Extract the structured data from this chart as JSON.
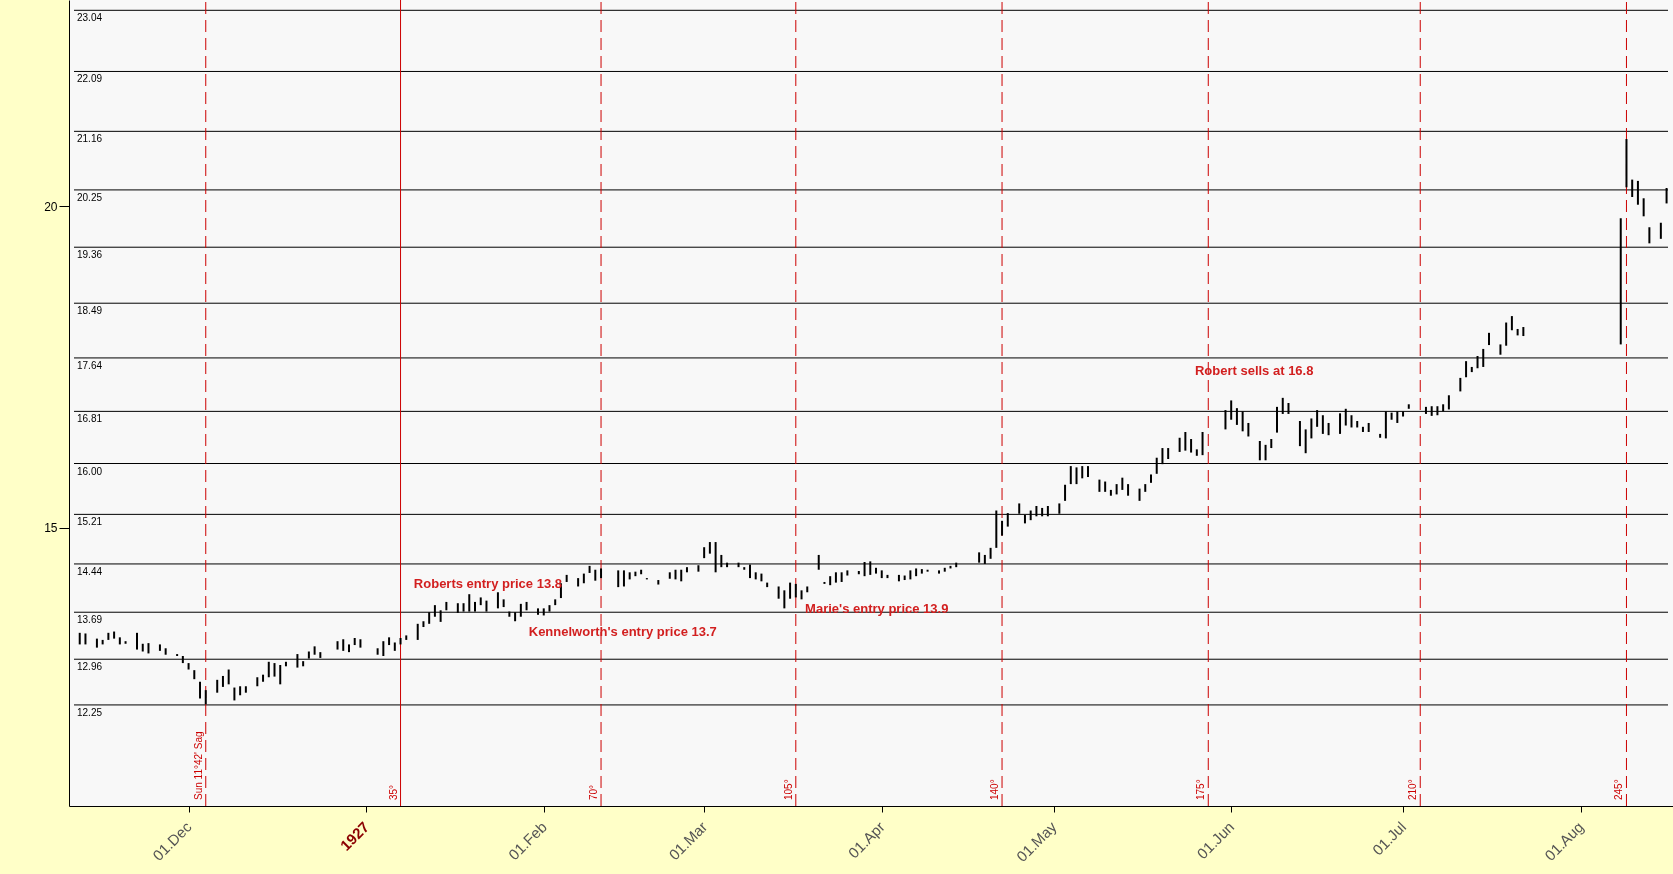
{
  "chart_data": {
    "type": "bar",
    "color": "#000000",
    "x": [
      "1926-11-12",
      "1926-11-13",
      "1926-11-15",
      "1926-11-16",
      "1926-11-17",
      "1926-11-18",
      "1926-11-19",
      "1926-11-20",
      "1926-11-22",
      "1926-11-23",
      "1926-11-24",
      "1926-11-26",
      "1926-11-27",
      "1926-11-29",
      "1926-11-30",
      "1926-12-01",
      "1926-12-02",
      "1926-12-03",
      "1926-12-04",
      "1926-12-06",
      "1926-12-07",
      "1926-12-08",
      "1926-12-09",
      "1926-12-10",
      "1926-12-11",
      "1926-12-13",
      "1926-12-14",
      "1926-12-15",
      "1926-12-16",
      "1926-12-17",
      "1926-12-18",
      "1926-12-20",
      "1926-12-21",
      "1926-12-22",
      "1926-12-23",
      "1926-12-24",
      "1926-12-27",
      "1926-12-28",
      "1926-12-29",
      "1926-12-30",
      "1926-12-31",
      "1927-01-03",
      "1927-01-04",
      "1927-01-05",
      "1927-01-06",
      "1927-01-07",
      "1927-01-08",
      "1927-01-10",
      "1927-01-11",
      "1927-01-12",
      "1927-01-13",
      "1927-01-14",
      "1927-01-15",
      "1927-01-17",
      "1927-01-18",
      "1927-01-19",
      "1927-01-20",
      "1927-01-21",
      "1927-01-22",
      "1927-01-24",
      "1927-01-25",
      "1927-01-26",
      "1927-01-27",
      "1927-01-28",
      "1927-01-29",
      "1927-01-31",
      "1927-02-01",
      "1927-02-02",
      "1927-02-03",
      "1927-02-04",
      "1927-02-05",
      "1927-02-07",
      "1927-02-08",
      "1927-02-09",
      "1927-02-10",
      "1927-02-11",
      "1927-02-14",
      "1927-02-15",
      "1927-02-16",
      "1927-02-17",
      "1927-02-18",
      "1927-02-19",
      "1927-02-21",
      "1927-02-23",
      "1927-02-24",
      "1927-02-25",
      "1927-02-26",
      "1927-02-28",
      "1927-03-01",
      "1927-03-02",
      "1927-03-03",
      "1927-03-04",
      "1927-03-05",
      "1927-03-07",
      "1927-03-08",
      "1927-03-09",
      "1927-03-10",
      "1927-03-11",
      "1927-03-12",
      "1927-03-14",
      "1927-03-15",
      "1927-03-16",
      "1927-03-17",
      "1927-03-18",
      "1927-03-19",
      "1927-03-21",
      "1927-03-22",
      "1927-03-23",
      "1927-03-24",
      "1927-03-25",
      "1927-03-26",
      "1927-03-28",
      "1927-03-29",
      "1927-03-30",
      "1927-03-31",
      "1927-04-01",
      "1927-04-02",
      "1927-04-04",
      "1927-04-05",
      "1927-04-06",
      "1927-04-07",
      "1927-04-08",
      "1927-04-09",
      "1927-04-11",
      "1927-04-12",
      "1927-04-13",
      "1927-04-14",
      "1927-04-18",
      "1927-04-19",
      "1927-04-20",
      "1927-04-21",
      "1927-04-22",
      "1927-04-23",
      "1927-04-25",
      "1927-04-26",
      "1927-04-27",
      "1927-04-28",
      "1927-04-29",
      "1927-04-30",
      "1927-05-02",
      "1927-05-03",
      "1927-05-04",
      "1927-05-05",
      "1927-05-06",
      "1927-05-07",
      "1927-05-09",
      "1927-05-10",
      "1927-05-11",
      "1927-05-12",
      "1927-05-13",
      "1927-05-14",
      "1927-05-16",
      "1927-05-17",
      "1927-05-18",
      "1927-05-19",
      "1927-05-20",
      "1927-05-21",
      "1927-05-23",
      "1927-05-24",
      "1927-05-25",
      "1927-05-26",
      "1927-05-27",
      "1927-05-31",
      "1927-06-01",
      "1927-06-02",
      "1927-06-03",
      "1927-06-04",
      "1927-06-06",
      "1927-06-07",
      "1927-06-08",
      "1927-06-09",
      "1927-06-10",
      "1927-06-11",
      "1927-06-13",
      "1927-06-14",
      "1927-06-15",
      "1927-06-16",
      "1927-06-17",
      "1927-06-18",
      "1927-06-20",
      "1927-06-21",
      "1927-06-22",
      "1927-06-23",
      "1927-06-24",
      "1927-06-25",
      "1927-06-27",
      "1927-06-28",
      "1927-06-29",
      "1927-06-30",
      "1927-07-01",
      "1927-07-02",
      "1927-07-05",
      "1927-07-06",
      "1927-07-07",
      "1927-07-08",
      "1927-07-09",
      "1927-07-11",
      "1927-07-12",
      "1927-07-13",
      "1927-07-14",
      "1927-07-15",
      "1927-07-16",
      "1927-07-18",
      "1927-07-19",
      "1927-07-20",
      "1927-07-21",
      "1927-07-22",
      "1927-08-08",
      "1927-08-09",
      "1927-08-10",
      "1927-08-11",
      "1927-08-12",
      "1927-08-13",
      "1927-08-15",
      "1927-08-16"
    ],
    "base": [
      13.19,
      13.19,
      13.14,
      13.19,
      13.26,
      13.28,
      13.19,
      13.2,
      13.11,
      13.08,
      13.05,
      13.09,
      13.03,
      13.01,
      12.9,
      12.8,
      12.65,
      12.35,
      12.26,
      12.44,
      12.53,
      12.57,
      12.32,
      12.4,
      12.44,
      12.54,
      12.61,
      12.68,
      12.69,
      12.57,
      12.85,
      12.83,
      12.85,
      12.97,
      13.03,
      12.98,
      13.11,
      13.09,
      13.07,
      13.18,
      13.14,
      13.03,
      13.01,
      13.18,
      13.09,
      13.19,
      13.26,
      13.26,
      13.46,
      13.51,
      13.62,
      13.54,
      13.72,
      13.68,
      13.7,
      13.7,
      13.7,
      13.8,
      13.7,
      13.75,
      13.77,
      13.62,
      13.55,
      13.62,
      13.72,
      13.65,
      13.64,
      13.7,
      13.8,
      13.91,
      14.16,
      14.09,
      14.14,
      14.3,
      14.18,
      14.22,
      14.08,
      14.09,
      14.2,
      14.25,
      14.28,
      14.2,
      14.12,
      14.21,
      14.2,
      14.17,
      14.31,
      14.32,
      14.53,
      14.6,
      14.31,
      14.39,
      14.39,
      14.39,
      14.35,
      14.22,
      14.2,
      14.17,
      14.08,
      13.9,
      13.75,
      13.9,
      13.92,
      13.89,
      14.0,
      14.35,
      14.13,
      14.11,
      14.15,
      14.16,
      14.26,
      14.28,
      14.25,
      14.27,
      14.29,
      14.22,
      14.22,
      14.17,
      14.19,
      14.2,
      14.25,
      14.29,
      14.32,
      14.29,
      14.32,
      14.37,
      14.39,
      14.46,
      14.44,
      14.52,
      14.69,
      14.88,
      15.02,
      15.22,
      15.07,
      15.12,
      15.18,
      15.18,
      15.18,
      15.22,
      15.42,
      15.68,
      15.68,
      15.77,
      15.79,
      15.56,
      15.56,
      15.5,
      15.52,
      15.59,
      15.5,
      15.42,
      15.56,
      15.7,
      15.84,
      15.99,
      16.07,
      16.18,
      16.2,
      16.17,
      16.12,
      16.13,
      16.53,
      16.68,
      16.6,
      16.5,
      16.42,
      16.05,
      16.05,
      16.24,
      16.48,
      16.77,
      16.77,
      16.27,
      16.16,
      16.39,
      16.57,
      16.46,
      16.44,
      16.46,
      16.59,
      16.56,
      16.56,
      16.49,
      16.49,
      16.4,
      16.39,
      16.68,
      16.63,
      16.73,
      16.85,
      16.77,
      16.74,
      16.75,
      16.81,
      16.84,
      17.12,
      17.34,
      17.42,
      17.48,
      17.5,
      17.84,
      17.69,
      17.83,
      18.07,
      17.99,
      17.98,
      17.85,
      20.29,
      20.14,
      20.02,
      19.84,
      19.42,
      19.49,
      20.04
    ],
    "values": [
      0.18,
      0.17,
      0.14,
      0.07,
      0.11,
      0.11,
      0.11,
      0.04,
      0.26,
      0.12,
      0.16,
      0.1,
      0.1,
      0.03,
      0.11,
      0.1,
      0.14,
      0.26,
      0.22,
      0.2,
      0.17,
      0.23,
      0.2,
      0.14,
      0.1,
      0.14,
      0.11,
      0.24,
      0.21,
      0.3,
      0.07,
      0.21,
      0.08,
      0.11,
      0.13,
      0.09,
      0.13,
      0.18,
      0.12,
      0.11,
      0.13,
      0.1,
      0.23,
      0.12,
      0.13,
      0.1,
      0.07,
      0.25,
      0.09,
      0.18,
      0.18,
      0.18,
      0.13,
      0.15,
      0.13,
      0.27,
      0.15,
      0.12,
      0.17,
      0.25,
      0.12,
      0.08,
      0.14,
      0.2,
      0.13,
      0.1,
      0.11,
      0.1,
      0.09,
      0.23,
      0.11,
      0.13,
      0.15,
      0.11,
      0.17,
      0.15,
      0.26,
      0.25,
      0.11,
      0.07,
      0.07,
      0.02,
      0.07,
      0.1,
      0.15,
      0.18,
      0.08,
      0.1,
      0.17,
      0.18,
      0.47,
      0.19,
      0.07,
      0.07,
      0.04,
      0.21,
      0.11,
      0.12,
      0.07,
      0.19,
      0.28,
      0.25,
      0.21,
      0.14,
      0.09,
      0.23,
      0.03,
      0.14,
      0.16,
      0.15,
      0.08,
      0.05,
      0.22,
      0.21,
      0.09,
      0.12,
      0.05,
      0.1,
      0.07,
      0.14,
      0.12,
      0.07,
      0.03,
      0.05,
      0.06,
      0.04,
      0.07,
      0.16,
      0.14,
      0.17,
      0.58,
      0.23,
      0.21,
      0.16,
      0.13,
      0.15,
      0.16,
      0.13,
      0.16,
      0.16,
      0.25,
      0.28,
      0.26,
      0.19,
      0.17,
      0.19,
      0.16,
      0.09,
      0.16,
      0.19,
      0.18,
      0.19,
      0.12,
      0.13,
      0.25,
      0.25,
      0.17,
      0.22,
      0.29,
      0.21,
      0.1,
      0.36,
      0.3,
      0.3,
      0.26,
      0.31,
      0.21,
      0.3,
      0.24,
      0.14,
      0.4,
      0.25,
      0.17,
      0.39,
      0.37,
      0.31,
      0.26,
      0.29,
      0.19,
      0.32,
      0.26,
      0.19,
      0.1,
      0.08,
      0.14,
      0.06,
      0.42,
      0.11,
      0.18,
      0.08,
      0.07,
      0.11,
      0.15,
      0.14,
      0.11,
      0.22,
      0.21,
      0.25,
      0.08,
      0.19,
      0.28,
      0.19,
      0.16,
      0.36,
      0.22,
      0.1,
      0.14,
      1.96,
      0.75,
      0.27,
      0.37,
      0.28,
      0.25,
      0.25,
      0.24
    ],
    "xlim": [
      "1926-11-11",
      "1927-08-16T06:00"
    ],
    "xticks": [
      {
        "value": "1926-12-01",
        "label": "01.Dec"
      },
      {
        "value": "1927-01-01",
        "label": "1927"
      },
      {
        "value": "1927-02-01",
        "label": "01.Feb"
      },
      {
        "value": "1927-03-01",
        "label": "01.Mar"
      },
      {
        "value": "1927-04-01",
        "label": "01.Apr"
      },
      {
        "value": "1927-05-01",
        "label": "01.May"
      },
      {
        "value": "1927-06-01",
        "label": "01.Jun"
      },
      {
        "value": "1927-07-01",
        "label": "01.Jul"
      },
      {
        "value": "1927-08-01",
        "label": "01.Aug"
      }
    ],
    "ylim": [
      10.68,
      23.2
    ],
    "yticks": [
      15,
      20
    ],
    "ref_lines": [
      {
        "axis": "y",
        "value": 23.04,
        "label": "23.04",
        "color": "#000000"
      },
      {
        "axis": "y",
        "value": 22.09,
        "label": "22.09",
        "color": "#000000"
      },
      {
        "axis": "y",
        "value": 21.16,
        "label": "21.16",
        "color": "#000000"
      },
      {
        "axis": "y",
        "value": 20.25,
        "label": "20.25",
        "color": "#000000"
      },
      {
        "axis": "y",
        "value": 19.36,
        "label": "19.36",
        "color": "#000000"
      },
      {
        "axis": "y",
        "value": 18.49,
        "label": "18.49",
        "color": "#000000"
      },
      {
        "axis": "y",
        "value": 17.64,
        "label": "17.64",
        "color": "#000000"
      },
      {
        "axis": "y",
        "value": 16.81,
        "label": "16.81",
        "color": "#000000"
      },
      {
        "axis": "y",
        "value": 16,
        "label": "16.00",
        "color": "#000000"
      },
      {
        "axis": "y",
        "value": 15.21,
        "label": "15.21",
        "color": "#000000"
      },
      {
        "axis": "y",
        "value": 14.44,
        "label": "14.44",
        "color": "#000000"
      },
      {
        "axis": "y",
        "value": 13.69,
        "label": "13.69",
        "color": "#000000"
      },
      {
        "axis": "y",
        "value": 12.96,
        "label": "12.96",
        "color": "#000000"
      },
      {
        "axis": "y",
        "value": 12.25,
        "label": "12.25",
        "color": "#000000"
      },
      {
        "axis": "x",
        "value": "1926-12-04",
        "label": "Sun 11°42' Sag",
        "color": "#cc0000",
        "line_style": "dashed"
      },
      {
        "axis": "x",
        "value": "1927-01-07",
        "label": "35°",
        "color": "#cc0000",
        "line_style": "solid"
      },
      {
        "axis": "x",
        "value": "1927-02-11",
        "label": "70°",
        "color": "#cc0000",
        "line_style": "dashed"
      },
      {
        "axis": "x",
        "value": "1927-03-17",
        "label": "105°",
        "color": "#cc0000",
        "line_style": "dashed"
      },
      {
        "axis": "x",
        "value": "1927-04-22",
        "label": "140°",
        "color": "#cc0000",
        "line_style": "dashed"
      },
      {
        "axis": "x",
        "value": "1927-05-28",
        "label": "175°",
        "color": "#cc0000",
        "line_style": "dashed"
      },
      {
        "axis": "x",
        "value": "1927-07-04",
        "label": "210°",
        "color": "#cc0000",
        "line_style": "dashed"
      },
      {
        "axis": "x",
        "value": "1927-08-09",
        "label": "245°",
        "color": "#cc0000",
        "line_style": "dashed"
      }
    ],
    "annotations": [
      {
        "text": "Roberts entry price 13.8",
        "x": "1927-01-24",
        "y": 13.8
      },
      {
        "text": "Kennelworth's entry price 13.7",
        "x": "1927-02-01",
        "y": 13.7
      },
      {
        "text": "Marie's entry price 13.9",
        "x": "1927-03-16",
        "y": 13.9
      },
      {
        "text": "Robert sells at 16.8",
        "x": "1927-06-01",
        "y": 16.8
      }
    ]
  }
}
